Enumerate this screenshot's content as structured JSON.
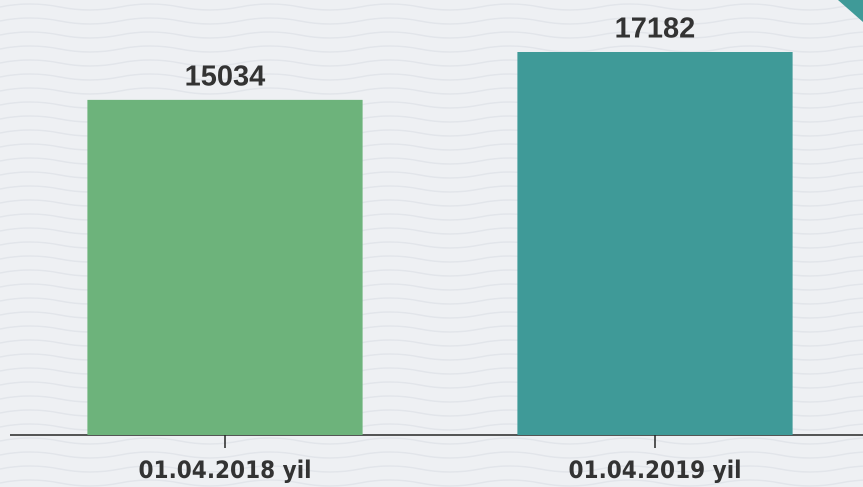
{
  "chart_data": {
    "type": "bar",
    "categories": [
      "01.04.2018 yil",
      "01.04.2019 yil"
    ],
    "values": [
      15034,
      17182
    ],
    "colors": [
      "#6db37b",
      "#3f9a98"
    ]
  }
}
